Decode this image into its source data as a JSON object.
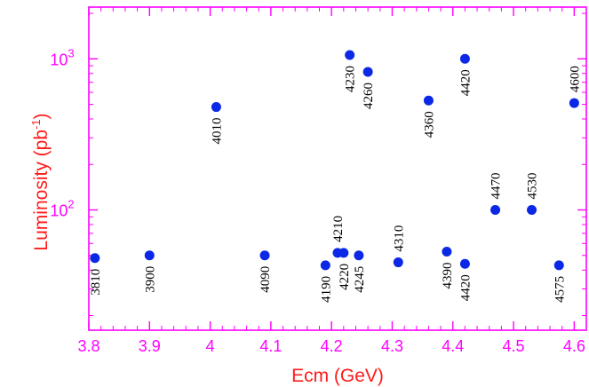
{
  "chart_data": {
    "type": "scatter",
    "title": "",
    "xlabel": "Ecm (GeV)",
    "ylabel_main": "Luminosity (pb",
    "ylabel_sup": "-1",
    "ylabel_close": ")",
    "xlim": [
      3.8,
      4.62
    ],
    "ylim": [
      16,
      2200
    ],
    "y_scale": "log",
    "x_ticks": [
      {
        "value": 3.8,
        "label": "3.8"
      },
      {
        "value": 3.9,
        "label": "3.9"
      },
      {
        "value": 4.0,
        "label": "4"
      },
      {
        "value": 4.1,
        "label": "4.1"
      },
      {
        "value": 4.2,
        "label": "4.2"
      },
      {
        "value": 4.3,
        "label": "4.3"
      },
      {
        "value": 4.4,
        "label": "4.4"
      },
      {
        "value": 4.5,
        "label": "4.5"
      },
      {
        "value": 4.6,
        "label": "4.6"
      }
    ],
    "y_ticks": [
      {
        "value": 100,
        "base": "10",
        "exp": "2"
      },
      {
        "value": 1000,
        "base": "10",
        "exp": "3"
      }
    ],
    "marker_color": "#0a28e6",
    "axis_color": "#ff00ff",
    "points": [
      {
        "x": 3.81,
        "y": 48,
        "label": "3810",
        "label_pos": "below"
      },
      {
        "x": 3.9,
        "y": 50,
        "label": "3900",
        "label_pos": "below"
      },
      {
        "x": 4.01,
        "y": 480,
        "label": "4010",
        "label_pos": "below"
      },
      {
        "x": 4.09,
        "y": 50,
        "label": "4090",
        "label_pos": "below"
      },
      {
        "x": 4.19,
        "y": 43,
        "label": "4190",
        "label_pos": "below"
      },
      {
        "x": 4.21,
        "y": 52,
        "label": "4210",
        "label_pos": "above"
      },
      {
        "x": 4.22,
        "y": 52,
        "label": "4220",
        "label_pos": "below"
      },
      {
        "x": 4.23,
        "y": 1060,
        "label": "4230",
        "label_pos": "below"
      },
      {
        "x": 4.245,
        "y": 50,
        "label": "4245",
        "label_pos": "below"
      },
      {
        "x": 4.26,
        "y": 820,
        "label": "4260",
        "label_pos": "below"
      },
      {
        "x": 4.31,
        "y": 45,
        "label": "4310",
        "label_pos": "above"
      },
      {
        "x": 4.36,
        "y": 530,
        "label": "4360",
        "label_pos": "below"
      },
      {
        "x": 4.39,
        "y": 53,
        "label": "4390",
        "label_pos": "below"
      },
      {
        "x": 4.42,
        "y": 1000,
        "label": "4420",
        "label_pos": "below"
      },
      {
        "x": 4.42,
        "y": 44,
        "label": "4420",
        "label_pos": "below"
      },
      {
        "x": 4.47,
        "y": 100,
        "label": "4470",
        "label_pos": "above"
      },
      {
        "x": 4.53,
        "y": 100,
        "label": "4530",
        "label_pos": "above"
      },
      {
        "x": 4.575,
        "y": 43,
        "label": "4575",
        "label_pos": "below"
      },
      {
        "x": 4.6,
        "y": 510,
        "label": "4600",
        "label_pos": "above"
      }
    ]
  }
}
